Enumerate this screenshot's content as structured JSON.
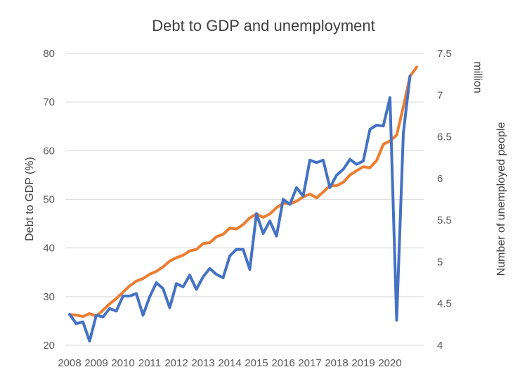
{
  "chart_data": {
    "type": "line",
    "title": "Debt to GDP and unemployment",
    "x_tick_labels": [
      "2008",
      "2009",
      "2010",
      "2011",
      "2012",
      "2013",
      "2014",
      "2015",
      "2016",
      "2017",
      "2018",
      "2019",
      "2020"
    ],
    "y_left": {
      "label": "Debt to GDP (%)",
      "ylim": [
        20,
        80
      ],
      "ticks": [
        20,
        30,
        40,
        50,
        60,
        70,
        80
      ]
    },
    "y_right": {
      "label": "Number of unemployed people",
      "unit": "million",
      "ylim": [
        4,
        7.5
      ],
      "ticks": [
        "4",
        "4.5",
        "5",
        "5.5",
        "6",
        "6.5",
        "7",
        "7.5"
      ]
    },
    "grid": true,
    "legend": "none",
    "series": [
      {
        "axis": "left",
        "color": "#ED7D31",
        "values": [
          26.3,
          26.2,
          25.9,
          26.5,
          26.0,
          27.2,
          28.5,
          29.6,
          30.9,
          32.2,
          33.2,
          33.7,
          34.6,
          35.2,
          36.1,
          37.3,
          38.0,
          38.5,
          39.4,
          39.7,
          40.9,
          41.1,
          42.3,
          42.8,
          44.1,
          43.9,
          44.8,
          46.2,
          47.0,
          46.3,
          47.0,
          48.3,
          49.2,
          49.1,
          49.6,
          50.5,
          51.1,
          50.3,
          51.5,
          52.8,
          52.8,
          53.5,
          55.0,
          55.9,
          56.7,
          56.5,
          58.0,
          61.3,
          62.0,
          63.2,
          69.0,
          75.3,
          77.2
        ]
      },
      {
        "axis": "right",
        "color": "#4472C4",
        "values": [
          4.37,
          4.26,
          4.28,
          4.05,
          4.36,
          4.34,
          4.44,
          4.41,
          4.59,
          4.59,
          4.62,
          4.36,
          4.58,
          4.75,
          4.68,
          4.45,
          4.74,
          4.7,
          4.84,
          4.67,
          4.82,
          4.92,
          4.85,
          4.81,
          5.07,
          5.15,
          5.15,
          4.91,
          5.58,
          5.34,
          5.49,
          5.31,
          5.75,
          5.69,
          5.89,
          5.79,
          6.22,
          6.19,
          6.22,
          5.89,
          6.04,
          6.11,
          6.23,
          6.17,
          6.21,
          6.59,
          6.64,
          6.63,
          6.97,
          4.3,
          6.54,
          7.23
        ]
      }
    ]
  }
}
